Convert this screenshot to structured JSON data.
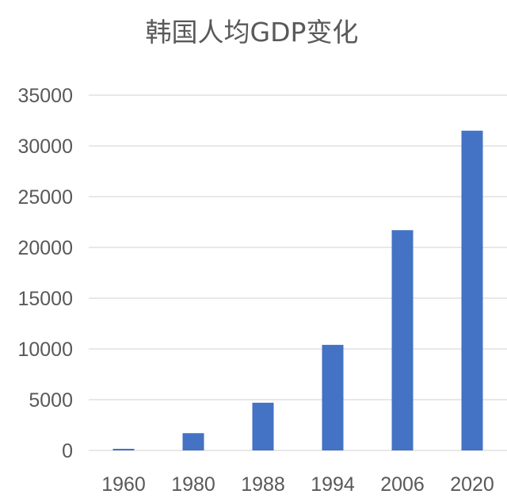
{
  "chart_data": {
    "type": "bar",
    "title": "韩国人均GDP变化",
    "xlabel": "",
    "ylabel": "",
    "categories": [
      "1960",
      "1980",
      "1988",
      "1994",
      "2006",
      "2020"
    ],
    "values": [
      158,
      1700,
      4700,
      10400,
      21700,
      31500
    ],
    "ylim": [
      0,
      35000
    ],
    "yticks": [
      "0",
      "5000",
      "10000",
      "15000",
      "20000",
      "25000",
      "30000",
      "35000"
    ],
    "grid": true,
    "bar_color": "#4472C4"
  }
}
